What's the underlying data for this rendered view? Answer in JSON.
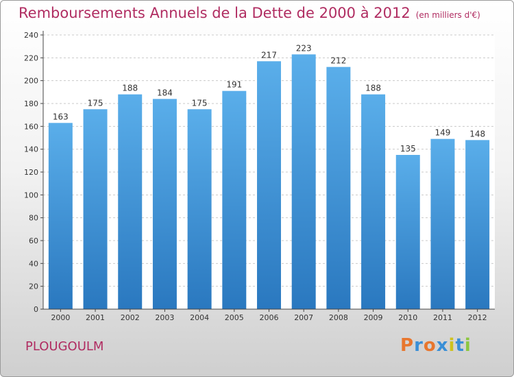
{
  "title": "Remboursements Annuels de la Dette de 2000 à 2012",
  "unit": "(en milliers d'€)",
  "commune": "PLOUGOULM",
  "brand": {
    "text": "Proxiti",
    "colors": [
      "#e8762d",
      "#3a8fd6",
      "#e8762d",
      "#3a8fd6",
      "#cfc21e",
      "#3a8fd6",
      "#8cc63f"
    ]
  },
  "colors": {
    "title": "#b02c61",
    "bar_top": "#5aaeea",
    "bar_bottom": "#2a78bf",
    "axis": "#444444",
    "grid": "#c9c9c9"
  },
  "chart_data": {
    "type": "bar",
    "categories": [
      "2000",
      "2001",
      "2002",
      "2003",
      "2004",
      "2005",
      "2006",
      "2007",
      "2008",
      "2009",
      "2010",
      "2011",
      "2012"
    ],
    "values": [
      163,
      175,
      188,
      184,
      175,
      191,
      217,
      223,
      212,
      188,
      135,
      149,
      148
    ],
    "ylim": [
      0,
      240
    ],
    "yticks": [
      0,
      20,
      40,
      60,
      80,
      100,
      120,
      140,
      160,
      180,
      200,
      220,
      240
    ],
    "grid": true,
    "data_labels": true
  }
}
